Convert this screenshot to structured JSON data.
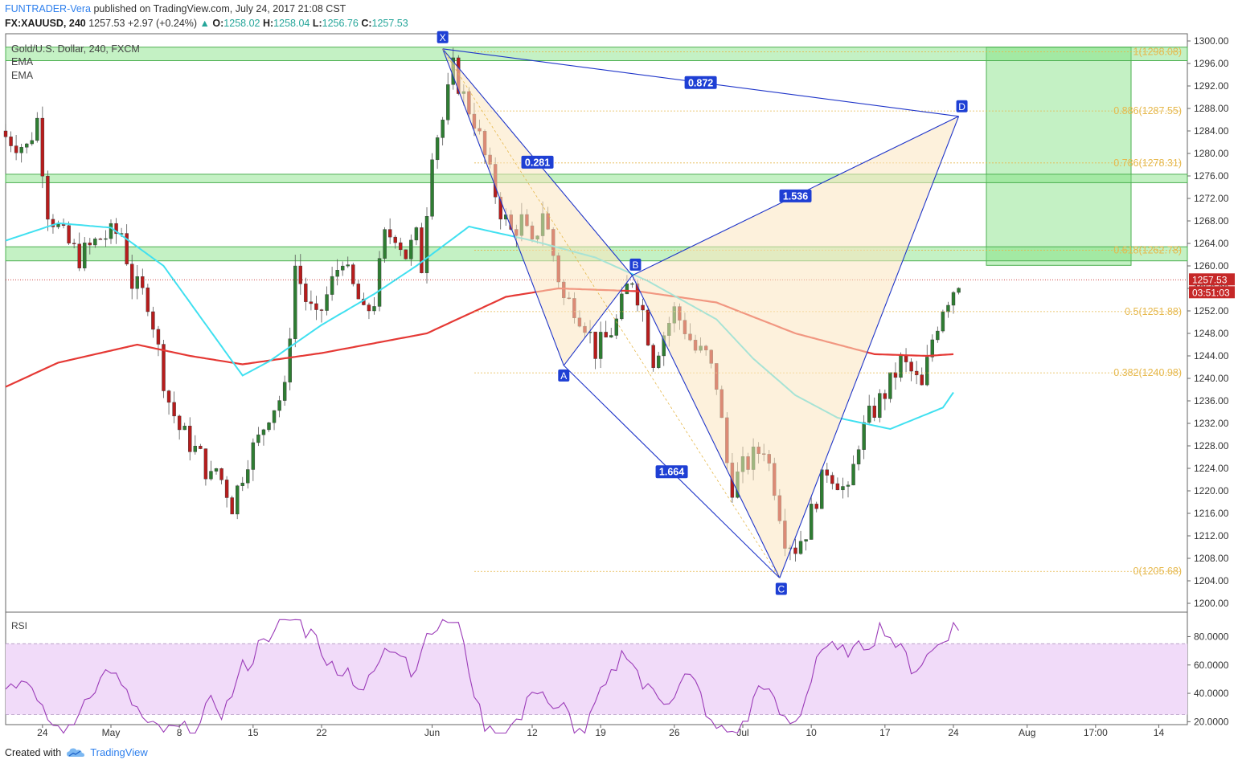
{
  "header": {
    "author": "FUNTRADER-Vera",
    "published": "published on TradingView.com, July 24, 2017 21:08 CST",
    "symbol": "FX:XAUUSD, 240",
    "last": "1257.53",
    "change_arrow": "▲",
    "change": "+2.97 (+0.24%)",
    "o_label": "O:",
    "o": "1258.02",
    "h_label": "H:",
    "h": "1258.04",
    "l_label": "L:",
    "l": "1256.76",
    "c_label": "C:",
    "c": "1257.53"
  },
  "legend": {
    "title": "Gold/U.S. Dollar, 240, FXCM",
    "ema1": "EMA",
    "ema2": "EMA",
    "rsi": "RSI"
  },
  "footer": {
    "created_with": "Created with",
    "brand": "TradingView"
  },
  "colors": {
    "candle_up": "#2e7d32",
    "candle_down": "#b71c1c",
    "ema_fast": "#40e0f0",
    "ema_slow": "#e53935",
    "pattern_line": "#1f35c9",
    "pattern_fill": "#fbe6c0",
    "fib": "#e6b84c",
    "zone": "#7de07d",
    "rsi_line": "#9b3bb8",
    "rsi_band": "#f1dbf9",
    "price_label": "#c62828"
  },
  "chart_data": {
    "type": "candlestick",
    "symbol": "FX:XAUUSD",
    "timeframe": "240",
    "price_axis": {
      "range": [
        1200,
        1300
      ],
      "ticks": [
        "1300.00",
        "1296.00",
        "1292.00",
        "1288.00",
        "1284.00",
        "1280.00",
        "1276.00",
        "1272.00",
        "1268.00",
        "1264.00",
        "1260.00",
        "1256.00",
        "1252.00",
        "1248.00",
        "1244.00",
        "1240.00",
        "1236.00",
        "1232.00",
        "1228.00",
        "1224.00",
        "1220.00",
        "1216.00",
        "1212.00",
        "1208.00",
        "1204.00",
        "1200.00"
      ]
    },
    "rsi_axis": {
      "range": [
        10,
        95
      ],
      "ticks": [
        "80.0000",
        "60.0000",
        "40.0000",
        "20.0000"
      ],
      "band": [
        25,
        75
      ]
    },
    "time_axis": [
      "24",
      "May",
      "8",
      "15",
      "22",
      "Jun",
      "12",
      "19",
      "26",
      "Jul",
      "10",
      "17",
      "24",
      "Aug",
      "17:00",
      "14"
    ],
    "last_price": "1257.53",
    "countdown": "03:51:03",
    "pattern": {
      "points": [
        {
          "label": "X",
          "date_index": 83,
          "price": 1298.6
        },
        {
          "label": "A",
          "date_index": 106,
          "price": 1242.3
        },
        {
          "label": "B",
          "date_index": 119,
          "price": 1258.3
        },
        {
          "label": "C",
          "date_index": 147,
          "price": 1204.5
        },
        {
          "label": "D",
          "date_index": 181,
          "price": 1286.6
        }
      ],
      "ratios": [
        {
          "label": "0.872",
          "between": "XD"
        },
        {
          "label": "0.281",
          "between": "XB"
        },
        {
          "label": "1.536",
          "between": "BD"
        },
        {
          "label": "1.664",
          "between": "AC"
        }
      ]
    },
    "fib_levels": [
      {
        "label": "1(1298.08)",
        "price": 1298.08
      },
      {
        "label": "0.886(1287.55)",
        "price": 1287.55
      },
      {
        "label": "0.786(1278.31)",
        "price": 1278.31
      },
      {
        "label": "0.618(1262.78)",
        "price": 1262.78
      },
      {
        "label": "0.5(1251.88)",
        "price": 1251.88
      },
      {
        "label": "0.382(1240.98)",
        "price": 1240.98
      },
      {
        "label": "0(1205.68)",
        "price": 1205.68
      }
    ],
    "zones": [
      {
        "from": 1296.5,
        "to": 1298.9
      },
      {
        "from": 1274.8,
        "to": 1276.3
      },
      {
        "from": 1260.9,
        "to": 1263.4
      }
    ],
    "target_zone": {
      "from": 1260.1,
      "to": 1298.9
    },
    "ema_fast_anchors": [
      [
        0,
        1264.5
      ],
      [
        10,
        1267.6
      ],
      [
        20,
        1266.8
      ],
      [
        30,
        1260
      ],
      [
        45,
        1240.5
      ],
      [
        50,
        1243
      ],
      [
        60,
        1249.5
      ],
      [
        70,
        1255
      ],
      [
        78,
        1260
      ],
      [
        88,
        1267
      ],
      [
        100,
        1264.5
      ],
      [
        112,
        1261.5
      ],
      [
        122,
        1257.3
      ],
      [
        135,
        1250.5
      ],
      [
        142,
        1243.5
      ],
      [
        150,
        1237
      ],
      [
        158,
        1233
      ],
      [
        168,
        1231
      ],
      [
        178,
        1234.8
      ],
      [
        180,
        1237.5
      ]
    ],
    "ema_slow_anchors": [
      [
        0,
        1238.5
      ],
      [
        10,
        1242.8
      ],
      [
        25,
        1246
      ],
      [
        35,
        1244
      ],
      [
        45,
        1242.5
      ],
      [
        60,
        1244.5
      ],
      [
        80,
        1248
      ],
      [
        95,
        1254.5
      ],
      [
        105,
        1256
      ],
      [
        120,
        1255.5
      ],
      [
        135,
        1253.5
      ],
      [
        150,
        1248
      ],
      [
        165,
        1244.3
      ],
      [
        175,
        1244
      ],
      [
        180,
        1244.3
      ]
    ]
  }
}
